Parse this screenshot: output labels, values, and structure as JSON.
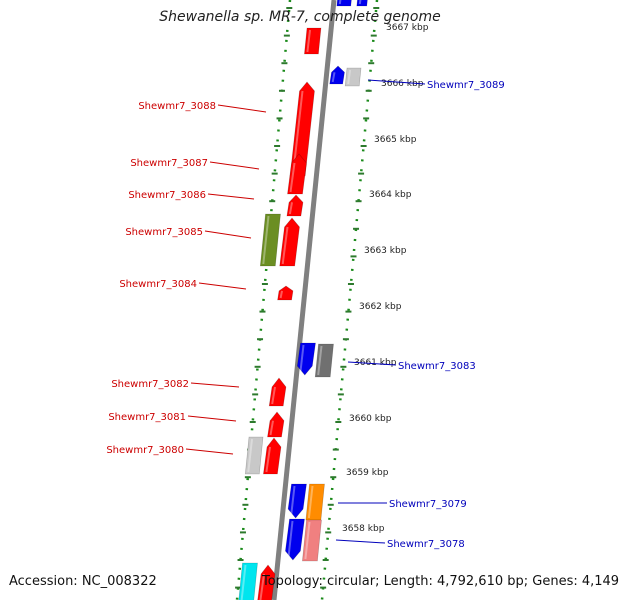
{
  "title": "Shewanella sp. MR-7, complete genome",
  "accession": "Accession: NC_008322",
  "topology": "Topology: circular; Length: 4,792,610 bp; Genes: 4,149",
  "colors": {
    "backbone": "#808080",
    "dotted_ring": "#1a8a1a",
    "tick": "#2d7a2d",
    "label_left": "#cc0000",
    "label_right": "#0000bb",
    "red": "#ff0000",
    "blue": "#0000ee",
    "olive": "#6b8e23",
    "grey_light": "#c8c8c8",
    "grey_dark": "#707070",
    "orange": "#ff8c00",
    "pink": "#f08080",
    "cyan": "#00e5ee"
  },
  "kbp_labels": [
    "3667 kbp",
    "3666 kbp",
    "3665 kbp",
    "3664 kbp",
    "3663 kbp",
    "3662 kbp",
    "3661 kbp",
    "3660 kbp",
    "3659 kbp",
    "3658 kbp"
  ],
  "gene_labels_left": [
    "Shewmr7_3088",
    "Shewmr7_3087",
    "Shewmr7_3086",
    "Shewmr7_3085",
    "Shewmr7_3084",
    "Shewmr7_3082",
    "Shewmr7_3081",
    "Shewmr7_3080"
  ],
  "gene_labels_right": [
    "Shewmr7_3089",
    "Shewmr7_3083",
    "Shewmr7_3079",
    "Shewmr7_3078"
  ]
}
